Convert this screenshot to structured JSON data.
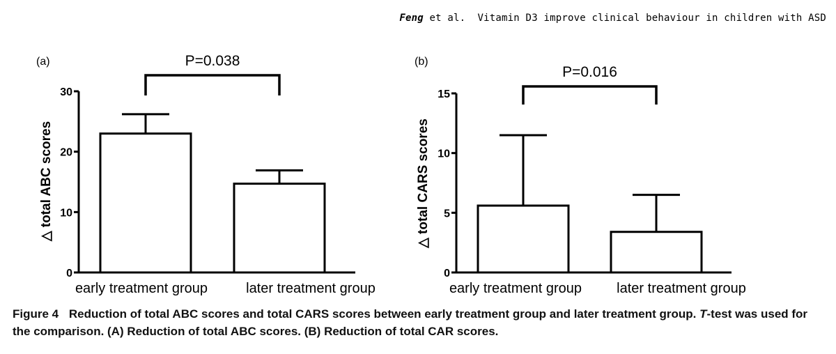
{
  "header": {
    "authors": "Feng",
    "etal": "et al.",
    "title": "Vitamin D3 improve clinical behaviour in children with ASD"
  },
  "chart_data": [
    {
      "type": "bar",
      "panel_label": "(a)",
      "categories": [
        "early treatment group",
        "later treatment group"
      ],
      "values": [
        23,
        14.7
      ],
      "error_upper": [
        26.2,
        16.9
      ],
      "ylabel": "△ total ABC scores",
      "ylim": [
        0,
        30
      ],
      "yticks": [
        0,
        10,
        20,
        30
      ],
      "significance": "P=0.038",
      "grid": false
    },
    {
      "type": "bar",
      "panel_label": "(b)",
      "categories": [
        "early treatment group",
        "later treatment group"
      ],
      "values": [
        5.6,
        3.4
      ],
      "error_upper": [
        11.5,
        6.5
      ],
      "ylabel": "△ total CARS scores",
      "ylim": [
        0,
        15
      ],
      "yticks": [
        0,
        5,
        10,
        15
      ],
      "significance": "P=0.016",
      "grid": false
    }
  ],
  "caption": {
    "label": "Figure 4",
    "text1": "Reduction of total ABC scores and total CARS scores between early treatment group and later treatment group.",
    "ttest": "T",
    "text2": "-test was used for the comparison. (A) Reduction of total ABC scores. (B) Reduction of total CAR scores."
  }
}
